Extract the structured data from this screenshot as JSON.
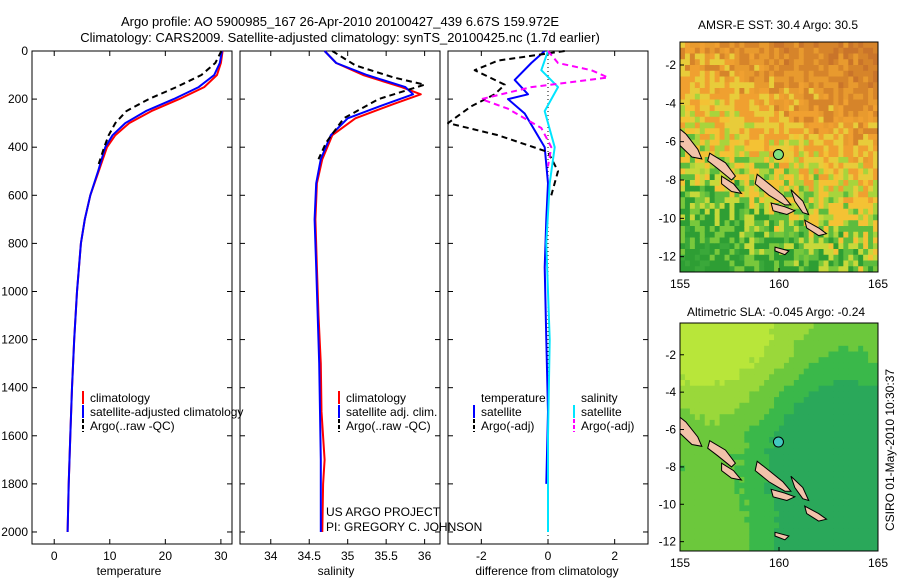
{
  "header": {
    "line1": "Argo profile: AO 5900985_167 26-Apr-2010 20100427_439 6.67S 159.972E",
    "line2": "Climatology: CARS2009. Satellite-adjusted climatology: synTS_20100425.nc (1.7d earlier)"
  },
  "footer": {
    "project": "US ARGO PROJECT",
    "pi": "PI: GREGORY C. JOHNSON",
    "stamp": "CSIRO 01-May-2010 10:30:37"
  },
  "chart_data": [
    {
      "type": "line",
      "xlabel": "temperature",
      "ylabel": "",
      "xlim": [
        -4,
        32
      ],
      "ylim": [
        2050,
        0
      ],
      "xticks": [
        "0",
        "10",
        "20",
        "30"
      ],
      "yticks": [
        "0",
        "200",
        "400",
        "600",
        "800",
        "1000",
        "1200",
        "1400",
        "1600",
        "1800",
        "2000"
      ],
      "legend": [
        "climatology",
        "satellite-adjusted climatology",
        "Argo(..raw -QC)"
      ],
      "series": [
        {
          "name": "climatology",
          "color": "#ff0000",
          "dash": "solid",
          "x": [
            30.3,
            30.0,
            29.3,
            27.0,
            22.5,
            17.5,
            13.5,
            11.0,
            9.5,
            8.0,
            6.5,
            5.5,
            4.8,
            4.1,
            3.6,
            3.2,
            2.9,
            2.6,
            2.4
          ],
          "y": [
            0,
            50,
            100,
            150,
            200,
            250,
            300,
            350,
            400,
            500,
            600,
            700,
            800,
            1000,
            1200,
            1400,
            1600,
            1800,
            2000
          ]
        },
        {
          "name": "satellite-adjusted climatology",
          "color": "#0000ff",
          "dash": "solid",
          "x": [
            30.2,
            29.8,
            28.8,
            26.0,
            21.5,
            16.5,
            12.8,
            10.5,
            9.2,
            7.9,
            6.5,
            5.5,
            4.8,
            4.1,
            3.6,
            3.2,
            2.9,
            2.6,
            2.4
          ],
          "y": [
            0,
            50,
            100,
            150,
            200,
            250,
            300,
            350,
            400,
            500,
            600,
            700,
            800,
            1000,
            1200,
            1400,
            1600,
            1800,
            2000
          ]
        },
        {
          "name": "Argo(..raw -QC)",
          "color": "#000000",
          "dash": "dashed",
          "x": [
            30.1,
            29.0,
            26.5,
            22.0,
            17.0,
            13.0,
            11.0,
            9.8,
            9.0,
            8.0
          ],
          "y": [
            0,
            50,
            100,
            150,
            200,
            250,
            300,
            350,
            400,
            470
          ]
        }
      ]
    },
    {
      "type": "line",
      "xlabel": "salinity",
      "ylabel": "",
      "xlim": [
        33.6,
        36.2
      ],
      "ylim": [
        2050,
        0
      ],
      "xticks": [
        "34",
        "34.5",
        "35",
        "35.5",
        "36"
      ],
      "legend": [
        "climatology",
        "satellite adj. clim.",
        "Argo(..raw -QC)"
      ],
      "series": [
        {
          "name": "climatology",
          "color": "#ff0000",
          "dash": "solid",
          "x": [
            34.7,
            34.85,
            35.2,
            35.7,
            35.95,
            35.6,
            35.1,
            34.8,
            34.67,
            34.6,
            34.58,
            34.6,
            34.62,
            34.65,
            34.66,
            34.7,
            34.68,
            34.67
          ],
          "y": [
            0,
            50,
            100,
            150,
            180,
            220,
            280,
            350,
            450,
            550,
            700,
            900,
            1100,
            1300,
            1500,
            1700,
            1800,
            2000
          ]
        },
        {
          "name": "satellite adj. clim.",
          "color": "#0000ff",
          "dash": "solid",
          "x": [
            34.7,
            34.85,
            35.25,
            35.75,
            35.85,
            35.5,
            35.0,
            34.78,
            34.65,
            34.59,
            34.57,
            34.59,
            34.61,
            34.63,
            34.64,
            34.65,
            34.65,
            34.65
          ],
          "y": [
            0,
            50,
            100,
            150,
            180,
            220,
            280,
            350,
            450,
            550,
            700,
            900,
            1100,
            1300,
            1500,
            1700,
            1800,
            2000
          ]
        },
        {
          "name": "Argo(..raw -QC)",
          "color": "#000000",
          "dash": "dashed",
          "x": [
            34.8,
            35.1,
            35.6,
            36.0,
            35.4,
            34.95,
            34.72,
            34.62
          ],
          "y": [
            0,
            60,
            110,
            140,
            200,
            280,
            380,
            450
          ]
        }
      ]
    },
    {
      "type": "line",
      "xlabel": "difference from climatology",
      "ylabel": "",
      "xlim": [
        -3,
        3
      ],
      "ylim": [
        2050,
        0
      ],
      "xticks": [
        "-2",
        "0",
        "2"
      ],
      "legend": [
        "temperature",
        "satellite",
        "Argo(-adj)",
        "salinity",
        "satellite",
        "Argo(-adj)"
      ],
      "series": [
        {
          "name": "temperature satellite",
          "color": "#0000ff",
          "dash": "solid",
          "x": [
            -0.1,
            -0.5,
            -1.0,
            -0.6,
            -1.2,
            -0.7,
            -0.1,
            0.0,
            -0.05,
            -0.1,
            -0.05,
            0.0,
            -0.05
          ],
          "y": [
            0,
            50,
            120,
            180,
            200,
            260,
            400,
            550,
            700,
            900,
            1200,
            1500,
            1800
          ]
        },
        {
          "name": "temperature Argo(-adj)",
          "color": "#000000",
          "dash": "dashed",
          "x": [
            0.5,
            -1.5,
            -2.2,
            -1.3,
            -1.6,
            -2.3,
            -3.0,
            -1.5,
            0.0,
            0.3,
            0.1
          ],
          "y": [
            0,
            40,
            80,
            140,
            180,
            230,
            300,
            350,
            420,
            500,
            600
          ]
        },
        {
          "name": "salinity satellite",
          "color": "#00e5ff",
          "dash": "solid",
          "x": [
            0.0,
            -0.2,
            0.3,
            -0.1,
            0.2,
            0.05,
            -0.05,
            0.05,
            0.0,
            0.0
          ],
          "y": [
            0,
            80,
            150,
            250,
            400,
            550,
            800,
            1200,
            1600,
            2000
          ]
        },
        {
          "name": "salinity Argo(-adj)",
          "color": "#ff00ff",
          "dash": "dashed",
          "x": [
            0.0,
            0.3,
            1.3,
            1.8,
            -0.5,
            -2.0,
            -1.2,
            -0.2,
            0.1,
            0.0
          ],
          "y": [
            0,
            50,
            80,
            110,
            150,
            200,
            240,
            320,
            400,
            480
          ]
        }
      ]
    },
    {
      "type": "heatmap",
      "title": "AMSR-E SST: 30.4 Argo: 30.5",
      "xlim": [
        155,
        165
      ],
      "ylim": [
        -12.8,
        -0.8
      ],
      "xticks": [
        "155",
        "160",
        "165"
      ],
      "yticks": [
        "-2",
        "-4",
        "-6",
        "-8",
        "-10",
        "-12"
      ],
      "argo_position": {
        "lon": 159.972,
        "lat": -6.67
      }
    },
    {
      "type": "heatmap",
      "title": "Altimetric SLA: -0.045 Argo: -0.24",
      "xlim": [
        155,
        165
      ],
      "ylim": [
        -12.5,
        -0.3
      ],
      "xticks": [
        "155",
        "160",
        "165"
      ],
      "yticks": [
        "-2",
        "-4",
        "-6",
        "-8",
        "-10",
        "-12"
      ],
      "argo_position": {
        "lon": 159.972,
        "lat": -6.67
      }
    }
  ]
}
